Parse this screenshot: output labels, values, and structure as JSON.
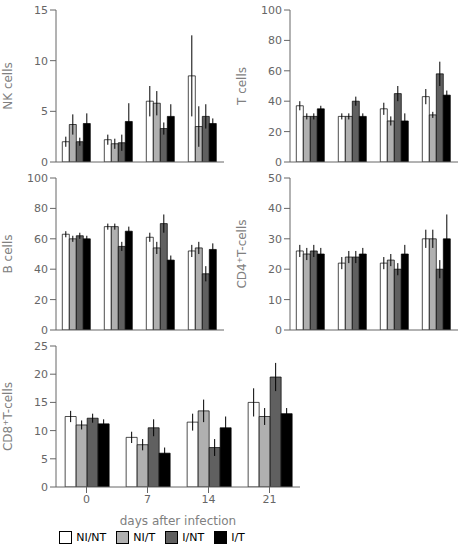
{
  "chart_data": [
    {
      "type": "bar",
      "y_label": "NK cells",
      "categories": [
        "0",
        "7",
        "14",
        "21"
      ],
      "tick_labels": "y",
      "grid": false,
      "ylim": [
        0,
        15
      ],
      "yticks": [
        0,
        5,
        10,
        15
      ],
      "series": [
        {
          "name": "NI/NT",
          "color": "#ffffff",
          "values": [
            2.0,
            2.2,
            6.0,
            8.5
          ],
          "errors": [
            0.5,
            0.5,
            1.5,
            4.0
          ]
        },
        {
          "name": "NI/T",
          "color": "#b0b0b0",
          "values": [
            3.7,
            1.8,
            5.8,
            3.5
          ],
          "errors": [
            1.0,
            0.5,
            1.2,
            2.0
          ]
        },
        {
          "name": "I/NT",
          "color": "#606060",
          "values": [
            2.0,
            1.9,
            3.3,
            4.5
          ],
          "errors": [
            0.4,
            0.8,
            0.6,
            1.2
          ]
        },
        {
          "name": "I/T",
          "color": "#000000",
          "values": [
            3.8,
            4.0,
            4.5,
            3.8
          ],
          "errors": [
            1.0,
            1.8,
            1.2,
            0.5
          ]
        }
      ]
    },
    {
      "type": "bar",
      "y_label": "T cells",
      "categories": [
        "0",
        "7",
        "14",
        "21"
      ],
      "tick_labels": "y",
      "grid": false,
      "ylim": [
        0,
        100
      ],
      "yticks": [
        0,
        20,
        40,
        60,
        80,
        100
      ],
      "series": [
        {
          "name": "NI/NT",
          "color": "#ffffff",
          "values": [
            37,
            30,
            35,
            43
          ],
          "errors": [
            3,
            2,
            4,
            5
          ]
        },
        {
          "name": "NI/T",
          "color": "#b0b0b0",
          "values": [
            30,
            30,
            27,
            31
          ],
          "errors": [
            2,
            2,
            3,
            2
          ]
        },
        {
          "name": "I/NT",
          "color": "#606060",
          "values": [
            30,
            40,
            45,
            58
          ],
          "errors": [
            2,
            3,
            5,
            8
          ]
        },
        {
          "name": "I/T",
          "color": "#000000",
          "values": [
            35,
            30,
            27,
            44
          ],
          "errors": [
            2,
            2,
            5,
            3
          ]
        }
      ]
    },
    {
      "type": "bar",
      "y_label": "B cells",
      "categories": [
        "0",
        "7",
        "14",
        "21"
      ],
      "tick_labels": "y",
      "grid": false,
      "ylim": [
        0,
        100
      ],
      "yticks": [
        0,
        20,
        40,
        60,
        80,
        100
      ],
      "series": [
        {
          "name": "NI/NT",
          "color": "#ffffff",
          "values": [
            63,
            68,
            61,
            52
          ],
          "errors": [
            2,
            2,
            3,
            4
          ]
        },
        {
          "name": "NI/T",
          "color": "#b0b0b0",
          "values": [
            60,
            68,
            54,
            54
          ],
          "errors": [
            2,
            2,
            4,
            4
          ]
        },
        {
          "name": "I/NT",
          "color": "#606060",
          "values": [
            62,
            55,
            70,
            37
          ],
          "errors": [
            2,
            3,
            6,
            5
          ]
        },
        {
          "name": "I/T",
          "color": "#000000",
          "values": [
            60,
            65,
            46,
            53
          ],
          "errors": [
            2,
            3,
            3,
            4
          ]
        }
      ]
    },
    {
      "type": "bar",
      "y_label": "CD4⁺T-cells",
      "categories": [
        "0",
        "7",
        "14",
        "21"
      ],
      "tick_labels": "y",
      "grid": false,
      "ylim": [
        0,
        50
      ],
      "yticks": [
        0,
        10,
        20,
        30,
        40,
        50
      ],
      "series": [
        {
          "name": "NI/NT",
          "color": "#ffffff",
          "values": [
            26,
            22,
            22,
            30
          ],
          "errors": [
            2,
            2,
            2,
            3
          ]
        },
        {
          "name": "NI/T",
          "color": "#b0b0b0",
          "values": [
            25,
            24,
            23,
            30
          ],
          "errors": [
            2,
            2,
            2,
            3
          ]
        },
        {
          "name": "I/NT",
          "color": "#606060",
          "values": [
            26,
            24,
            20,
            20
          ],
          "errors": [
            2,
            2,
            2,
            3
          ]
        },
        {
          "name": "I/T",
          "color": "#000000",
          "values": [
            25,
            25,
            25,
            30
          ],
          "errors": [
            2,
            2,
            3,
            8
          ]
        }
      ]
    },
    {
      "type": "bar",
      "y_label": "CD8⁺T-cells",
      "x_label": "days after infection",
      "categories": [
        "0",
        "7",
        "14",
        "21"
      ],
      "grid": false,
      "legend": "bottom",
      "ylim": [
        0,
        25
      ],
      "yticks": [
        0,
        5,
        10,
        15,
        20,
        25
      ],
      "series": [
        {
          "name": "NI/NT",
          "color": "#ffffff",
          "values": [
            12.5,
            8.8,
            11.5,
            15.0
          ],
          "errors": [
            1.0,
            1.0,
            1.5,
            2.5
          ]
        },
        {
          "name": "NI/T",
          "color": "#b0b0b0",
          "values": [
            11.0,
            7.5,
            13.5,
            12.5
          ],
          "errors": [
            0.8,
            1.0,
            2.0,
            1.5
          ]
        },
        {
          "name": "I/NT",
          "color": "#606060",
          "values": [
            12.2,
            10.5,
            7.0,
            19.5
          ],
          "errors": [
            0.8,
            1.5,
            1.5,
            2.5
          ]
        },
        {
          "name": "I/T",
          "color": "#000000",
          "values": [
            11.2,
            6.0,
            10.5,
            13.0
          ],
          "errors": [
            0.8,
            1.0,
            2.0,
            1.0
          ]
        }
      ]
    }
  ]
}
